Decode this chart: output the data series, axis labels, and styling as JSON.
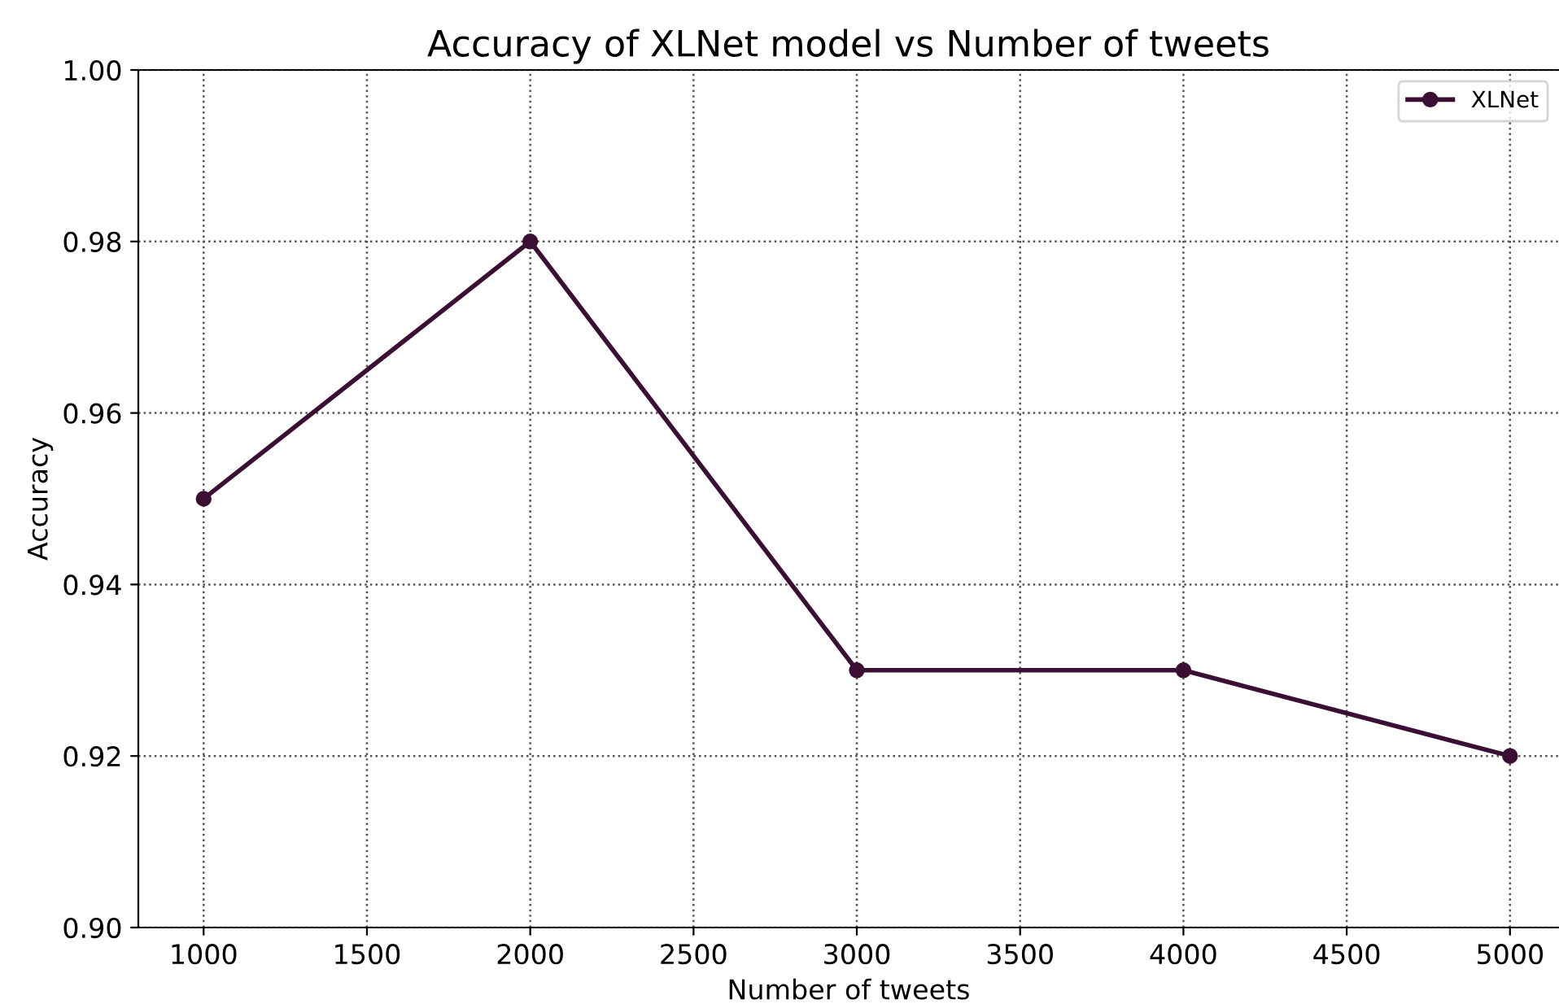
{
  "chart_data": {
    "type": "line",
    "title": "Accuracy of XLNet model vs Number of tweets",
    "xlabel": "Number of tweets",
    "ylabel": "Accuracy",
    "x": [
      1000,
      2000,
      3000,
      4000,
      5000
    ],
    "series": [
      {
        "name": "XLNet",
        "color": "#3a0f33",
        "values": [
          0.95,
          0.98,
          0.93,
          0.93,
          0.92
        ]
      }
    ],
    "xlim": [
      800,
      5150
    ],
    "xticks": [
      1000,
      1500,
      2000,
      2500,
      3000,
      3500,
      4000,
      4500,
      5000
    ],
    "ylim": [
      0.9,
      1.0
    ],
    "yticks": [
      {
        "value": 0.9,
        "label": "0.90"
      },
      {
        "value": 0.92,
        "label": "0.92"
      },
      {
        "value": 0.94,
        "label": "0.94"
      },
      {
        "value": 0.96,
        "label": "0.96"
      },
      {
        "value": 0.98,
        "label": "0.98"
      },
      {
        "value": 1.0,
        "label": "1.00"
      }
    ],
    "grid": true,
    "legend": "top right",
    "marker": "circle",
    "line_style": "solid"
  }
}
